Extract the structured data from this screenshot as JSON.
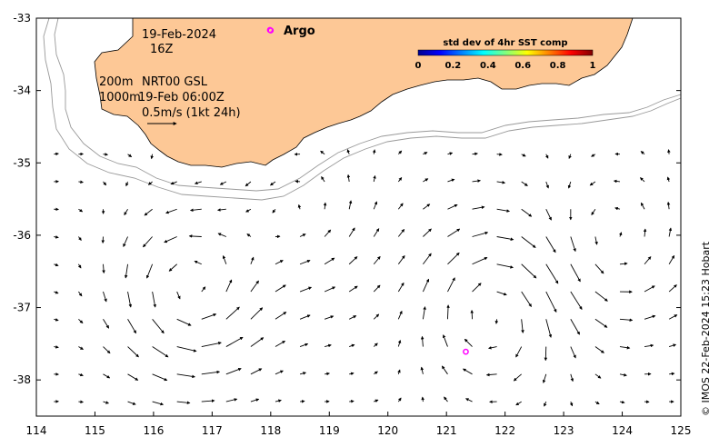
{
  "map": {
    "date_label": "19-Feb-2024",
    "time_label": "16Z",
    "isobath_200_label": "200m",
    "isobath_1000_label": "1000m",
    "current_source_label": "NRT00 GSL",
    "current_time_label": "19-Feb 06:00Z",
    "scale_arrow_label": "0.5m/s (1kt 24h)",
    "argo_label": "Argo",
    "credit": "© IMOS 22-Feb-2024 15:23 Hobart",
    "colors": {
      "land": "#fdc896",
      "argo_marker": "#ff00ff",
      "isobath": "#999999",
      "arrow": "#000000"
    },
    "argo_floats": [
      {
        "lon": 118.0,
        "lat": -33.17
      },
      {
        "lon": 121.33,
        "lat": -37.61
      }
    ]
  },
  "colorbar": {
    "title": "std dev of 4hr SST comp",
    "ticks": [
      "0",
      "0.2",
      "0.4",
      "0.6",
      "0.8",
      "1"
    ],
    "colormap": "jet"
  },
  "axes": {
    "lon_ticks": [
      "114",
      "115",
      "116",
      "117",
      "118",
      "119",
      "120",
      "121",
      "122",
      "123",
      "124",
      "125"
    ],
    "lat_ticks": [
      "-33",
      "-34",
      "-35",
      "-36",
      "-37",
      "-38"
    ],
    "lon_range": [
      114,
      125
    ],
    "lat_range": [
      -38.5,
      -33
    ]
  }
}
